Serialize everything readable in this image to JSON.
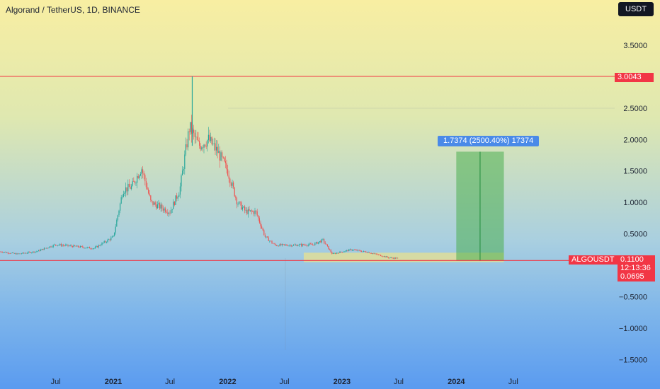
{
  "header": {
    "title": "Algorand / TetherUS, 1D, BINANCE",
    "currency_button": "USDT"
  },
  "chart_data": {
    "type": "candlestick",
    "title": "Algorand / TetherUS, 1D, BINANCE",
    "symbol": "ALGOUSDT",
    "y_ticks": [
      "3.5000",
      "2.5000",
      "2.0000",
      "1.5000",
      "1.0000",
      "0.5000",
      "−0.5000",
      "−1.0000",
      "−1.5000"
    ],
    "y_range": [
      -1.72,
      3.95
    ],
    "x_labels": [
      {
        "label": "Jul",
        "major": false
      },
      {
        "label": "2021",
        "major": true
      },
      {
        "label": "Jul",
        "major": false
      },
      {
        "label": "2022",
        "major": true
      },
      {
        "label": "Jul",
        "major": false
      },
      {
        "label": "2023",
        "major": true
      },
      {
        "label": "Jul",
        "major": false
      },
      {
        "label": "2024",
        "major": true
      },
      {
        "label": "Jul",
        "major": false
      }
    ],
    "price_path": [
      [
        "2020-01",
        0.22
      ],
      [
        "2020-03",
        0.18
      ],
      [
        "2020-05",
        0.22
      ],
      [
        "2020-07",
        0.33
      ],
      [
        "2020-09",
        0.3
      ],
      [
        "2020-11",
        0.27
      ],
      [
        "2021-01",
        0.45
      ],
      [
        "2021-02",
        1.2
      ],
      [
        "2021-03",
        1.25
      ],
      [
        "2021-04",
        1.55
      ],
      [
        "2021-05",
        1.0
      ],
      [
        "2021-07",
        0.85
      ],
      [
        "2021-08",
        1.2
      ],
      [
        "2021-09",
        2.2
      ],
      [
        "2021-10",
        1.9
      ],
      [
        "2021-11",
        2.0
      ],
      [
        "2021-12",
        1.8
      ],
      [
        "2022-01",
        1.5
      ],
      [
        "2022-02",
        1.0
      ],
      [
        "2022-03",
        0.85
      ],
      [
        "2022-04",
        0.85
      ],
      [
        "2022-05",
        0.45
      ],
      [
        "2022-06",
        0.32
      ],
      [
        "2022-08",
        0.32
      ],
      [
        "2022-10",
        0.33
      ],
      [
        "2022-11",
        0.4
      ],
      [
        "2022-12",
        0.18
      ],
      [
        "2023-02",
        0.25
      ],
      [
        "2023-04",
        0.2
      ],
      [
        "2023-06",
        0.12
      ],
      [
        "2023-07",
        0.11
      ]
    ],
    "spike_high": 3.0043,
    "resistance": {
      "value": 3.0043,
      "label": "3.0043"
    },
    "support": {
      "value": 0.0695,
      "label": "0.0695"
    },
    "current": {
      "symbol": "ALGOUSDT",
      "price": "0.1100",
      "countdown": "12:13:36",
      "value": 0.11
    },
    "consolidation_zone": {
      "from": "2022-09",
      "to": "2024-06",
      "low": 0.05,
      "high": 0.2
    },
    "target_box": {
      "from": "2024-01",
      "to": "2024-06",
      "low": 0.07,
      "high": 1.807
    },
    "measure_label": "1.7374 (2500.40%) 17374",
    "colors": {
      "up": "#26a69a",
      "down": "#ef5350",
      "level_line": "#f23645",
      "target": "#4caf50",
      "label_bg": "#4a8ae8"
    }
  }
}
